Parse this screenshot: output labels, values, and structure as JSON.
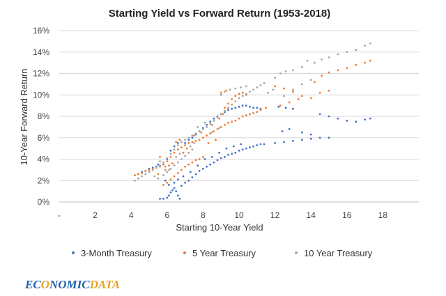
{
  "chart_data": {
    "type": "scatter",
    "title": "Starting Yield vs Forward Return (1953-2018)",
    "xlabel": "Starting 10-Year Yield",
    "ylabel": "10-Year Forward Return",
    "xlim": [
      -2,
      18
    ],
    "ylim": [
      0,
      16
    ],
    "x_ticks": [
      "-",
      "2",
      "4",
      "6",
      "8",
      "10",
      "12",
      "14",
      "16",
      "18"
    ],
    "y_ticks": [
      "0%",
      "2%",
      "4%",
      "6%",
      "8%",
      "10%",
      "12%",
      "14%",
      "16%"
    ],
    "grid": "horizontal",
    "legend_position": "bottom",
    "series": [
      {
        "name": "3-Month Treasury",
        "color": "#4472C4",
        "points": [
          [
            2.2,
            2.5
          ],
          [
            2.4,
            2.6
          ],
          [
            2.6,
            2.8
          ],
          [
            2.8,
            2.9
          ],
          [
            3.0,
            3.1
          ],
          [
            3.2,
            3.2
          ],
          [
            3.4,
            3.3
          ],
          [
            3.5,
            3.5
          ],
          [
            3.6,
            0.3
          ],
          [
            3.8,
            0.3
          ],
          [
            4.0,
            0.4
          ],
          [
            4.1,
            0.6
          ],
          [
            4.2,
            0.9
          ],
          [
            4.3,
            1.1
          ],
          [
            4.4,
            1.3
          ],
          [
            4.5,
            1.0
          ],
          [
            4.6,
            0.6
          ],
          [
            4.7,
            0.3
          ],
          [
            4.8,
            1.5
          ],
          [
            5.0,
            1.8
          ],
          [
            5.2,
            2.0
          ],
          [
            5.4,
            2.3
          ],
          [
            5.6,
            2.6
          ],
          [
            5.8,
            2.9
          ],
          [
            6.0,
            3.1
          ],
          [
            6.2,
            3.3
          ],
          [
            6.4,
            3.5
          ],
          [
            6.6,
            3.7
          ],
          [
            6.8,
            3.9
          ],
          [
            7.0,
            4.1
          ],
          [
            7.2,
            4.2
          ],
          [
            7.4,
            4.4
          ],
          [
            7.6,
            4.5
          ],
          [
            7.8,
            4.6
          ],
          [
            8.0,
            4.8
          ],
          [
            8.2,
            4.9
          ],
          [
            8.4,
            5.0
          ],
          [
            8.6,
            5.1
          ],
          [
            8.8,
            5.2
          ],
          [
            9.0,
            5.3
          ],
          [
            9.2,
            5.4
          ],
          [
            9.4,
            5.4
          ],
          [
            10.0,
            5.5
          ],
          [
            10.5,
            5.6
          ],
          [
            11.0,
            5.7
          ],
          [
            11.5,
            5.8
          ],
          [
            12.0,
            5.9
          ],
          [
            12.5,
            6.0
          ],
          [
            13.0,
            6.0
          ],
          [
            3.8,
            3.5
          ],
          [
            4.0,
            4.0
          ],
          [
            4.2,
            4.8
          ],
          [
            4.4,
            5.2
          ],
          [
            4.6,
            5.5
          ],
          [
            4.8,
            5.6
          ],
          [
            5.0,
            5.5
          ],
          [
            5.2,
            5.8
          ],
          [
            5.4,
            6.0
          ],
          [
            5.6,
            6.3
          ],
          [
            5.8,
            6.6
          ],
          [
            6.0,
            6.9
          ],
          [
            6.2,
            7.2
          ],
          [
            6.4,
            7.5
          ],
          [
            6.6,
            7.8
          ],
          [
            6.8,
            8.0
          ],
          [
            7.0,
            8.2
          ],
          [
            7.2,
            8.4
          ],
          [
            7.4,
            8.6
          ],
          [
            7.6,
            8.7
          ],
          [
            7.8,
            8.8
          ],
          [
            8.0,
            8.9
          ],
          [
            8.2,
            9.0
          ],
          [
            8.4,
            9.0
          ],
          [
            8.6,
            8.9
          ],
          [
            8.8,
            8.8
          ],
          [
            9.0,
            8.8
          ],
          [
            9.2,
            8.7
          ],
          [
            10.2,
            8.9
          ],
          [
            10.6,
            8.8
          ],
          [
            11.0,
            8.7
          ],
          [
            10.4,
            6.6
          ],
          [
            10.8,
            6.8
          ],
          [
            11.5,
            6.5
          ],
          [
            12.0,
            6.3
          ],
          [
            12.5,
            8.2
          ],
          [
            13.0,
            8.0
          ],
          [
            13.5,
            7.8
          ],
          [
            14.0,
            7.6
          ],
          [
            14.5,
            7.5
          ],
          [
            15.0,
            7.7
          ],
          [
            15.3,
            7.8
          ],
          [
            4.4,
            1.8
          ],
          [
            4.6,
            2.1
          ],
          [
            4.9,
            2.4
          ],
          [
            5.3,
            2.8
          ],
          [
            5.7,
            3.4
          ],
          [
            6.1,
            4.0
          ],
          [
            6.5,
            4.2
          ],
          [
            6.9,
            4.6
          ],
          [
            7.3,
            5.0
          ],
          [
            7.7,
            5.2
          ],
          [
            8.1,
            5.4
          ],
          [
            3.9,
            2.0
          ],
          [
            4.1,
            1.6
          ]
        ]
      },
      {
        "name": "5 Year Treasury",
        "color": "#ED7D31",
        "points": [
          [
            2.2,
            2.5
          ],
          [
            2.4,
            2.6
          ],
          [
            2.6,
            2.7
          ],
          [
            2.8,
            2.9
          ],
          [
            3.0,
            3.0
          ],
          [
            3.2,
            3.1
          ],
          [
            3.4,
            3.2
          ],
          [
            3.6,
            3.3
          ],
          [
            3.8,
            3.5
          ],
          [
            4.0,
            3.8
          ],
          [
            4.2,
            4.2
          ],
          [
            4.4,
            4.6
          ],
          [
            4.6,
            4.9
          ],
          [
            4.8,
            5.1
          ],
          [
            5.0,
            5.3
          ],
          [
            5.2,
            5.5
          ],
          [
            5.4,
            5.6
          ],
          [
            5.6,
            5.7
          ],
          [
            5.8,
            5.8
          ],
          [
            6.0,
            6.0
          ],
          [
            6.2,
            6.2
          ],
          [
            6.4,
            6.4
          ],
          [
            6.6,
            6.6
          ],
          [
            6.8,
            6.8
          ],
          [
            7.0,
            7.0
          ],
          [
            7.2,
            7.2
          ],
          [
            7.4,
            7.4
          ],
          [
            7.6,
            7.5
          ],
          [
            7.8,
            7.6
          ],
          [
            8.0,
            7.8
          ],
          [
            8.2,
            8.0
          ],
          [
            8.4,
            8.1
          ],
          [
            8.6,
            8.2
          ],
          [
            8.8,
            8.3
          ],
          [
            9.0,
            8.4
          ],
          [
            3.8,
            1.6
          ],
          [
            4.0,
            1.8
          ],
          [
            4.2,
            2.1
          ],
          [
            4.4,
            2.4
          ],
          [
            4.6,
            2.7
          ],
          [
            4.8,
            3.0
          ],
          [
            5.0,
            3.3
          ],
          [
            5.2,
            3.5
          ],
          [
            5.4,
            3.7
          ],
          [
            5.6,
            3.9
          ],
          [
            5.8,
            4.0
          ],
          [
            6.0,
            4.2
          ],
          [
            3.9,
            3.0
          ],
          [
            4.1,
            3.4
          ],
          [
            4.3,
            3.6
          ],
          [
            7.2,
            8.8
          ],
          [
            7.4,
            9.2
          ],
          [
            7.6,
            9.6
          ],
          [
            7.8,
            9.9
          ],
          [
            8.0,
            10.1
          ],
          [
            8.2,
            10.2
          ],
          [
            8.4,
            10.0
          ],
          [
            7.0,
            10.2
          ],
          [
            7.3,
            10.4
          ],
          [
            10.0,
            10.8
          ],
          [
            10.5,
            10.6
          ],
          [
            11.0,
            10.3
          ],
          [
            11.5,
            9.9
          ],
          [
            12.0,
            9.7
          ],
          [
            12.5,
            10.2
          ],
          [
            13.0,
            10.4
          ],
          [
            12.2,
            11.2
          ],
          [
            12.6,
            11.8
          ],
          [
            13.0,
            12.1
          ],
          [
            13.5,
            12.3
          ],
          [
            14.0,
            12.5
          ],
          [
            14.5,
            12.8
          ],
          [
            15.0,
            13.0
          ],
          [
            15.3,
            13.2
          ],
          [
            9.2,
            8.6
          ],
          [
            9.5,
            8.8
          ],
          [
            10.3,
            9.0
          ],
          [
            10.8,
            9.3
          ],
          [
            11.3,
            9.6
          ],
          [
            6.5,
            7.2
          ],
          [
            6.9,
            7.8
          ],
          [
            7.1,
            8.2
          ],
          [
            5.5,
            6.2
          ],
          [
            5.9,
            6.5
          ],
          [
            6.3,
            5.5
          ],
          [
            6.7,
            5.8
          ],
          [
            4.5,
            5.6
          ],
          [
            4.7,
            5.8
          ],
          [
            3.6,
            4.2
          ],
          [
            3.5,
            2.6
          ],
          [
            4.9,
            4.6
          ],
          [
            5.1,
            5.0
          ]
        ]
      },
      {
        "name": "10 Year Treasury",
        "color": "#A5A5A5",
        "points": [
          [
            2.2,
            2.0
          ],
          [
            2.4,
            2.2
          ],
          [
            2.6,
            2.4
          ],
          [
            2.8,
            2.6
          ],
          [
            3.0,
            2.8
          ],
          [
            3.2,
            3.0
          ],
          [
            3.4,
            3.2
          ],
          [
            3.6,
            3.4
          ],
          [
            3.8,
            3.7
          ],
          [
            4.0,
            4.1
          ],
          [
            4.2,
            4.5
          ],
          [
            4.4,
            4.9
          ],
          [
            4.6,
            5.3
          ],
          [
            4.8,
            5.6
          ],
          [
            5.0,
            5.8
          ],
          [
            5.2,
            6.0
          ],
          [
            5.4,
            6.2
          ],
          [
            5.6,
            6.4
          ],
          [
            5.8,
            6.6
          ],
          [
            6.0,
            6.8
          ],
          [
            6.2,
            7.0
          ],
          [
            6.4,
            7.3
          ],
          [
            6.6,
            7.6
          ],
          [
            6.8,
            7.9
          ],
          [
            7.0,
            8.2
          ],
          [
            7.2,
            8.5
          ],
          [
            7.4,
            8.8
          ],
          [
            7.6,
            9.1
          ],
          [
            7.8,
            9.4
          ],
          [
            8.0,
            9.7
          ],
          [
            8.2,
            9.9
          ],
          [
            8.4,
            10.1
          ],
          [
            8.6,
            10.3
          ],
          [
            8.8,
            10.5
          ],
          [
            9.0,
            10.7
          ],
          [
            9.2,
            10.9
          ],
          [
            9.4,
            11.1
          ],
          [
            3.8,
            2.5
          ],
          [
            4.0,
            2.8
          ],
          [
            4.2,
            3.1
          ],
          [
            4.4,
            3.4
          ],
          [
            4.6,
            3.7
          ],
          [
            4.8,
            4.0
          ],
          [
            5.0,
            4.3
          ],
          [
            5.2,
            4.6
          ],
          [
            5.4,
            4.9
          ],
          [
            3.6,
            3.8
          ],
          [
            3.9,
            3.3
          ],
          [
            4.1,
            3.0
          ],
          [
            7.0,
            10.0
          ],
          [
            7.2,
            10.3
          ],
          [
            7.5,
            10.5
          ],
          [
            7.8,
            10.6
          ],
          [
            8.1,
            10.7
          ],
          [
            8.4,
            10.8
          ],
          [
            10.0,
            11.6
          ],
          [
            10.3,
            12.0
          ],
          [
            10.6,
            12.2
          ],
          [
            11.0,
            12.3
          ],
          [
            11.5,
            12.6
          ],
          [
            11.8,
            13.2
          ],
          [
            12.2,
            13.0
          ],
          [
            12.6,
            13.3
          ],
          [
            13.0,
            13.5
          ],
          [
            13.5,
            13.8
          ],
          [
            14.0,
            14.0
          ],
          [
            14.5,
            14.2
          ],
          [
            15.0,
            14.6
          ],
          [
            15.3,
            14.8
          ],
          [
            10.5,
            9.9
          ],
          [
            11.0,
            10.5
          ],
          [
            11.5,
            11.0
          ],
          [
            12.0,
            11.4
          ],
          [
            9.6,
            10.2
          ],
          [
            9.9,
            10.5
          ],
          [
            6.5,
            6.5
          ],
          [
            6.9,
            6.9
          ],
          [
            5.7,
            7.0
          ],
          [
            6.1,
            7.4
          ],
          [
            4.5,
            4.2
          ],
          [
            4.7,
            4.5
          ],
          [
            3.5,
            2.2
          ],
          [
            3.3,
            2.4
          ],
          [
            5.3,
            5.2
          ],
          [
            5.5,
            5.5
          ]
        ]
      }
    ]
  },
  "brand": {
    "pre": "EC",
    "circle": "O",
    "mid": "NOMIC",
    "post": "DATA",
    "color_main": "#1f5fae",
    "color_accent": "#e8a020"
  }
}
